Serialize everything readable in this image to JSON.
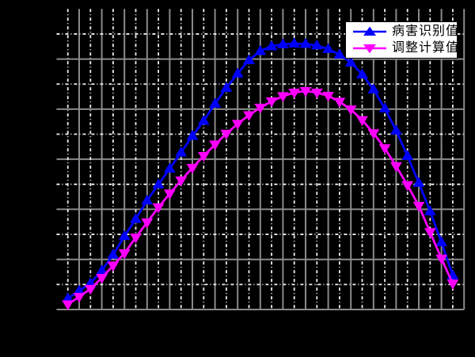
{
  "figure": {
    "background_color": "#000000",
    "plot_background": "transparent",
    "note": "no axis tick labels, title or axis names are visible (rendered black on black)"
  },
  "legend": {
    "position": "top-right",
    "background": "#ffffff",
    "border_color": "#000000",
    "entries": [
      {
        "label": "病害识别值",
        "color": "#0000ff",
        "marker": "triangle-up-icon"
      },
      {
        "label": "调整计算值",
        "color": "#ff00ff",
        "marker": "triangle-down-icon"
      }
    ]
  },
  "chart_data": {
    "type": "line",
    "title": "",
    "xlabel": "",
    "ylabel": "",
    "xlim": [
      0,
      18
    ],
    "ylim": [
      0,
      6
    ],
    "x_major_step": 1,
    "x_minor_step": 0.5,
    "y_major_step": 1,
    "y_minor_step": 0.5,
    "tick_labels_visible": false,
    "grid": {
      "major_on": true,
      "minor_on": true,
      "major_color": "#8a8a8a",
      "minor_color": "#f0f0f0",
      "major_style": "solid",
      "minor_style": "dash-dot"
    },
    "legend_position": "top-right",
    "x": [
      0.5,
      1.0,
      1.5,
      2.0,
      2.5,
      3.0,
      3.5,
      4.0,
      4.5,
      5.0,
      5.5,
      6.0,
      6.5,
      7.0,
      7.5,
      8.0,
      8.5,
      9.0,
      9.5,
      10.0,
      10.5,
      11.0,
      11.5,
      12.0,
      12.5,
      13.0,
      13.5,
      14.0,
      14.5,
      15.0,
      15.5,
      16.0,
      16.5,
      17.0,
      17.5
    ],
    "series": [
      {
        "name": "病害识别值",
        "color": "#0000ff",
        "marker": "triangle-up",
        "values": [
          0.221,
          0.375,
          0.526,
          0.779,
          1.095,
          1.465,
          1.807,
          2.176,
          2.497,
          2.813,
          3.134,
          3.466,
          3.766,
          4.109,
          4.425,
          4.71,
          4.978,
          5.16,
          5.255,
          5.294,
          5.31,
          5.302,
          5.271,
          5.2,
          5.089,
          4.931,
          4.694,
          4.393,
          4.014,
          3.571,
          3.066,
          2.528,
          1.96,
          1.343,
          0.68
        ]
      },
      {
        "name": "调整计算值",
        "color": "#ff00ff",
        "marker": "triangle-down",
        "values": [
          0.103,
          0.253,
          0.411,
          0.632,
          0.877,
          1.122,
          1.438,
          1.738,
          2.039,
          2.315,
          2.576,
          2.829,
          3.066,
          3.295,
          3.508,
          3.706,
          3.88,
          4.03,
          4.156,
          4.259,
          4.33,
          4.362,
          4.33,
          4.266,
          4.148,
          3.993,
          3.781,
          3.519,
          3.219,
          2.86,
          2.481,
          2.07,
          1.544,
          1.016,
          0.517
        ]
      }
    ]
  }
}
